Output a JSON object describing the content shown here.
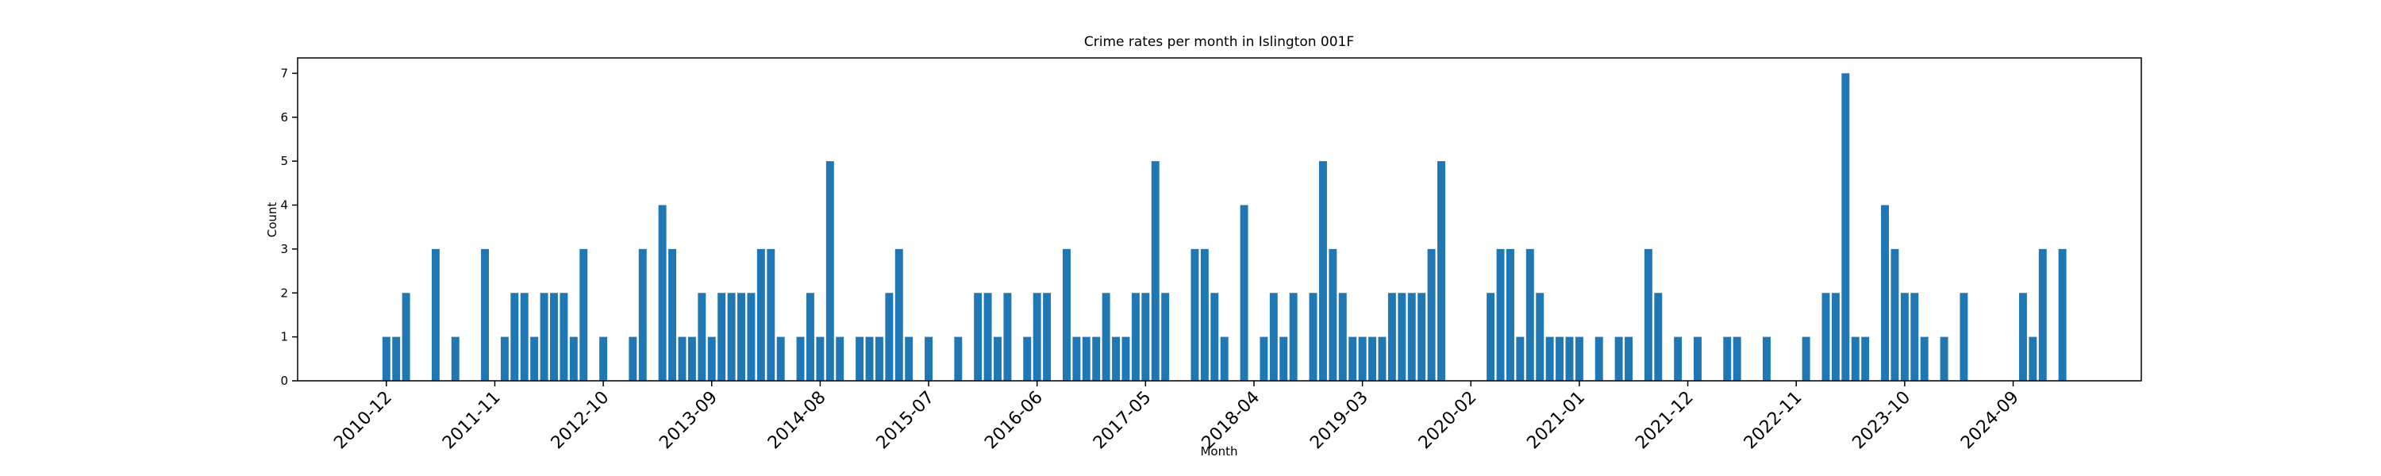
{
  "chart_data": {
    "type": "bar",
    "title": "Crime rates per month in Islington 001F",
    "xlabel": "Month",
    "ylabel": "Count",
    "color": "#1f77b4",
    "x": [
      "2010-12",
      "2011-01",
      "2011-02",
      "2011-05",
      "2011-07",
      "2011-10",
      "2011-12",
      "2012-01",
      "2012-02",
      "2012-03",
      "2012-04",
      "2012-05",
      "2012-06",
      "2012-07",
      "2012-08",
      "2012-10",
      "2013-01",
      "2013-02",
      "2013-04",
      "2013-05",
      "2013-06",
      "2013-07",
      "2013-08",
      "2013-09",
      "2013-10",
      "2013-11",
      "2013-12",
      "2014-01",
      "2014-02",
      "2014-03",
      "2014-04",
      "2014-06",
      "2014-07",
      "2014-08",
      "2014-09",
      "2014-10",
      "2014-12",
      "2015-01",
      "2015-02",
      "2015-03",
      "2015-04",
      "2015-05",
      "2015-07",
      "2015-10",
      "2015-12",
      "2016-01",
      "2016-02",
      "2016-03",
      "2016-05",
      "2016-06",
      "2016-07",
      "2016-09",
      "2016-10",
      "2016-11",
      "2016-12",
      "2017-01",
      "2017-02",
      "2017-03",
      "2017-04",
      "2017-05",
      "2017-06",
      "2017-07",
      "2017-10",
      "2017-11",
      "2017-12",
      "2018-01",
      "2018-03",
      "2018-05",
      "2018-06",
      "2018-07",
      "2018-08",
      "2018-10",
      "2018-11",
      "2018-12",
      "2019-01",
      "2019-02",
      "2019-03",
      "2019-04",
      "2019-05",
      "2019-06",
      "2019-07",
      "2019-08",
      "2019-09",
      "2019-10",
      "2019-11",
      "2020-04",
      "2020-05",
      "2020-06",
      "2020-07",
      "2020-08",
      "2020-09",
      "2020-10",
      "2020-11",
      "2020-12",
      "2021-01",
      "2021-03",
      "2021-05",
      "2021-06",
      "2021-08",
      "2021-09",
      "2021-11",
      "2022-01",
      "2022-04",
      "2022-05",
      "2022-08",
      "2022-12",
      "2023-02",
      "2023-03",
      "2023-04",
      "2023-05",
      "2023-06",
      "2023-08",
      "2023-09",
      "2023-10",
      "2023-11",
      "2023-12",
      "2024-02",
      "2024-04",
      "2024-10",
      "2024-11",
      "2024-12",
      "2025-02"
    ],
    "values": [
      1,
      1,
      2,
      3,
      1,
      3,
      1,
      2,
      2,
      1,
      2,
      2,
      2,
      1,
      3,
      1,
      1,
      3,
      4,
      3,
      1,
      1,
      2,
      1,
      2,
      2,
      2,
      2,
      3,
      3,
      1,
      1,
      2,
      1,
      5,
      1,
      1,
      1,
      1,
      2,
      3,
      1,
      1,
      1,
      2,
      2,
      1,
      2,
      1,
      2,
      2,
      3,
      1,
      1,
      1,
      2,
      1,
      1,
      2,
      2,
      5,
      2,
      3,
      3,
      2,
      1,
      4,
      1,
      2,
      1,
      2,
      2,
      5,
      3,
      2,
      1,
      1,
      1,
      1,
      2,
      2,
      2,
      2,
      3,
      5,
      2,
      3,
      3,
      1,
      3,
      2,
      1,
      1,
      1,
      1,
      1,
      1,
      1,
      3,
      2,
      1,
      1,
      1,
      1,
      1,
      1,
      2,
      2,
      7,
      1,
      1,
      4,
      3,
      2,
      2,
      1,
      1,
      2,
      2,
      1,
      3,
      3
    ],
    "xlim": [
      "2010-03",
      "2025-10"
    ],
    "xticks": [
      "2010-12",
      "2011-11",
      "2012-10",
      "2013-09",
      "2014-08",
      "2015-07",
      "2016-06",
      "2017-05",
      "2018-04",
      "2019-03",
      "2020-02",
      "2021-01",
      "2021-12",
      "2022-11",
      "2023-10",
      "2024-09"
    ],
    "ylim": [
      0,
      7.35
    ],
    "yticks": [
      0,
      1,
      2,
      3,
      4,
      5,
      6,
      7
    ]
  }
}
